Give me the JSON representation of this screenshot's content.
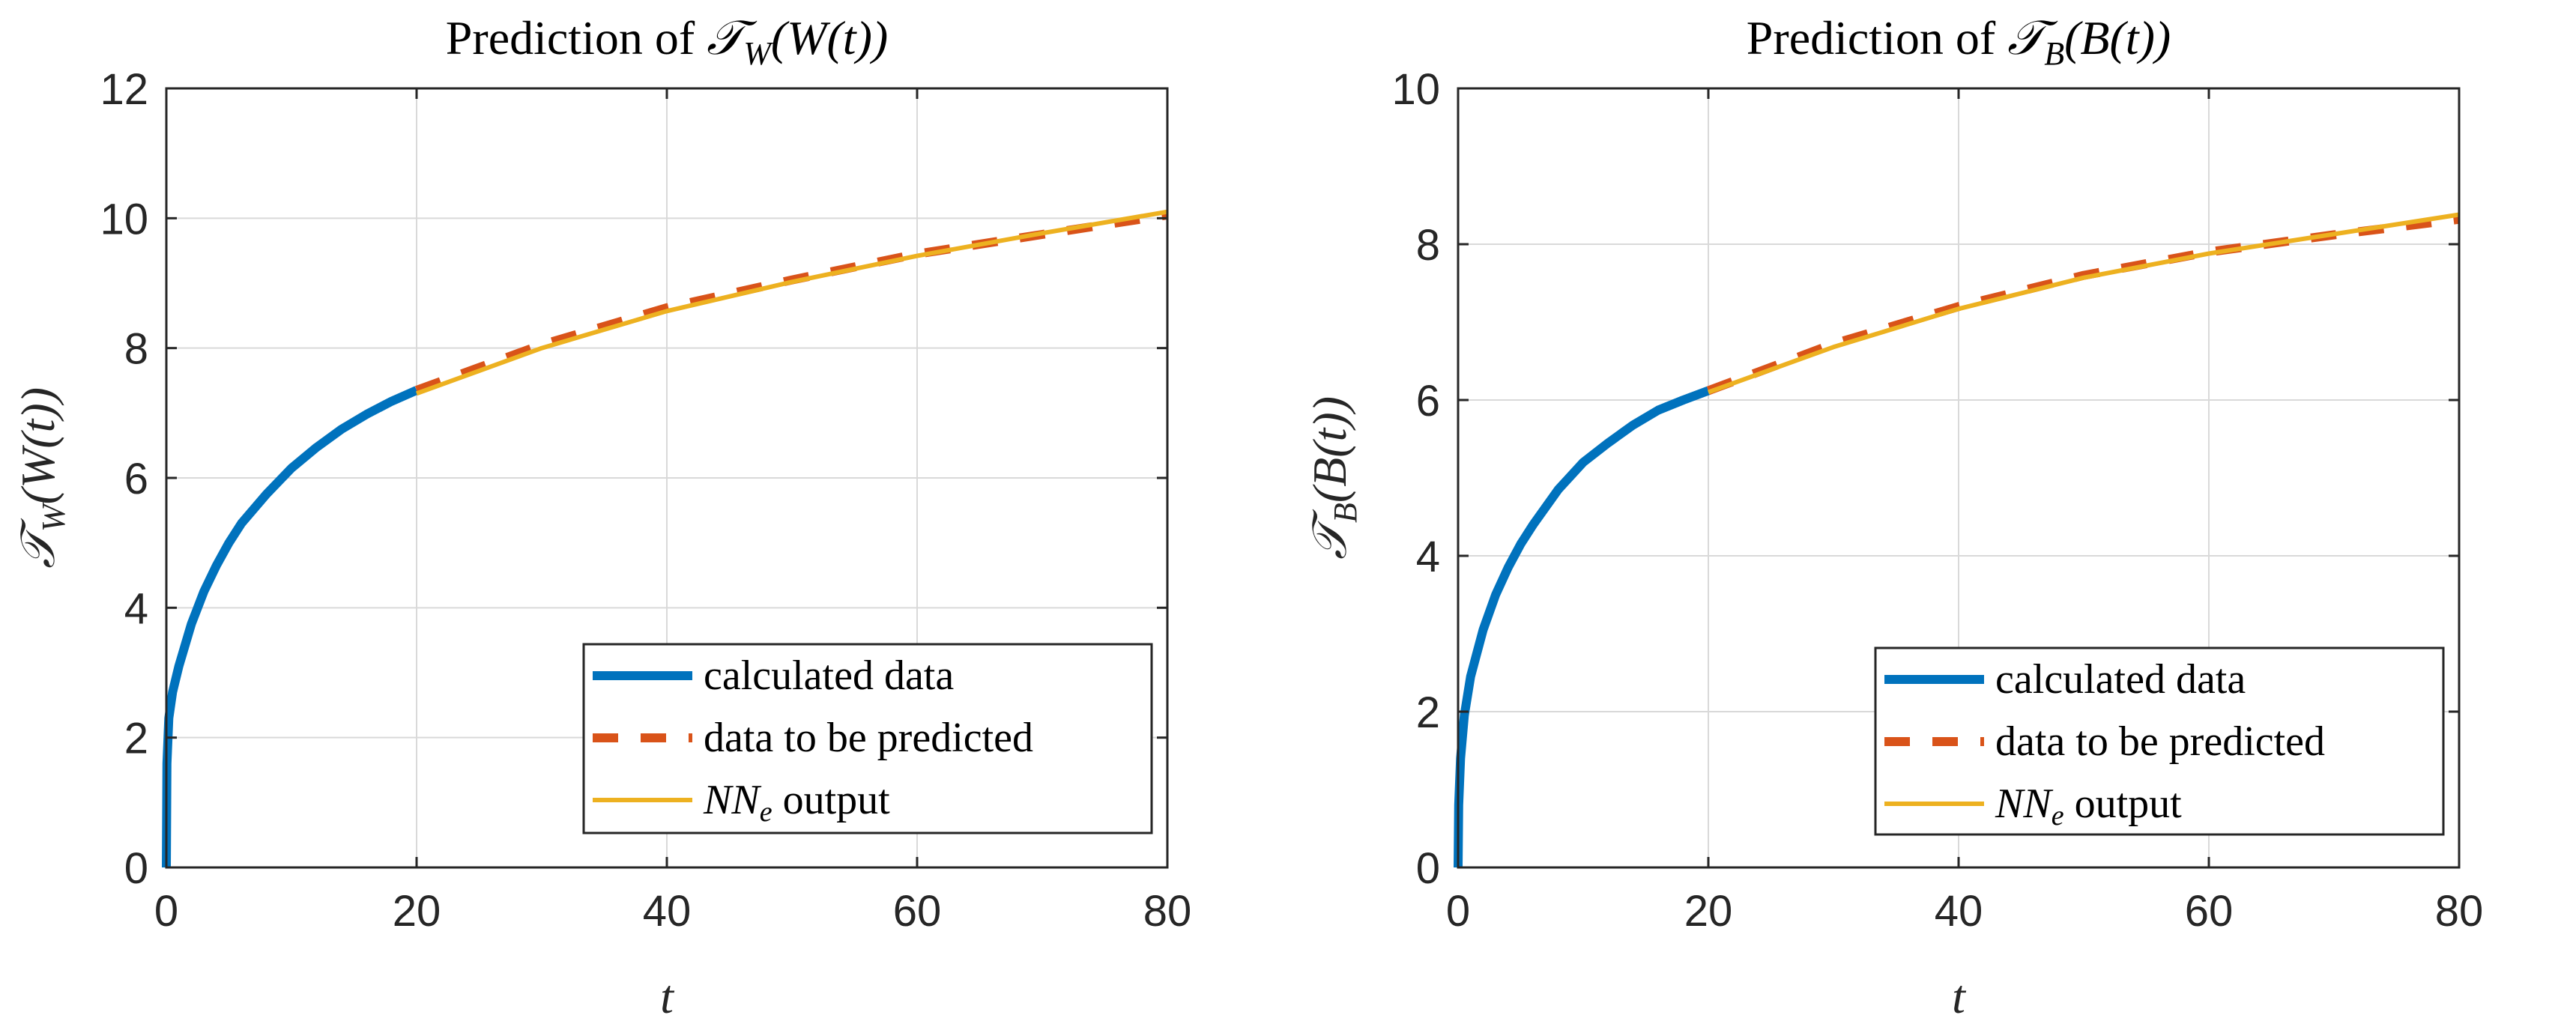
{
  "colors": {
    "calculated": "#0072BD",
    "predicted": "#D95319",
    "nn_output": "#EDB120",
    "axis": "#262626",
    "grid": "#d9d9d9"
  },
  "chart_data": [
    {
      "type": "line",
      "title_prefix": "Prediction of ",
      "title_math": "𝒯",
      "title_sub": "W",
      "title_arg": "(W(t))",
      "xlabel": "t",
      "ylabel_math": "𝒯",
      "ylabel_sub": "W",
      "ylabel_arg": "(W(t))",
      "xlim": [
        0,
        80
      ],
      "ylim": [
        0,
        12
      ],
      "xticks": [
        "0",
        "20",
        "40",
        "60",
        "80"
      ],
      "yticks": [
        "0",
        "2",
        "4",
        "6",
        "8",
        "10",
        "12"
      ],
      "grid": true,
      "legend_position": "bottom-right",
      "series": [
        {
          "name": "calculated data",
          "x": [
            0,
            0.05,
            0.2,
            0.5,
            1,
            2,
            3,
            4,
            5,
            6,
            8,
            10,
            12,
            14,
            16,
            18,
            20
          ],
          "y": [
            0,
            1.6,
            2.3,
            2.7,
            3.1,
            3.75,
            4.25,
            4.65,
            5.0,
            5.3,
            5.75,
            6.15,
            6.47,
            6.75,
            6.98,
            7.18,
            7.35
          ]
        },
        {
          "name": "data to be predicted",
          "x": [
            20,
            30,
            40,
            50,
            60,
            70,
            80
          ],
          "y": [
            7.35,
            8.05,
            8.62,
            9.05,
            9.45,
            9.75,
            10.05
          ]
        },
        {
          "name": "NN_e output",
          "x": [
            20,
            30,
            40,
            50,
            60,
            70,
            80
          ],
          "y": [
            7.3,
            8.0,
            8.57,
            9.02,
            9.42,
            9.77,
            10.1
          ]
        }
      ],
      "legend": [
        "calculated data",
        "data to be predicted",
        "NN",
        "e",
        " output"
      ]
    },
    {
      "type": "line",
      "title_prefix": "Prediction of ",
      "title_math": "𝒯",
      "title_sub": "B",
      "title_arg": "(B(t))",
      "xlabel": "t",
      "ylabel_math": "𝒯",
      "ylabel_sub": "B",
      "ylabel_arg": "(B(t))",
      "xlim": [
        0,
        80
      ],
      "ylim": [
        0,
        10
      ],
      "xticks": [
        "0",
        "20",
        "40",
        "60",
        "80"
      ],
      "yticks": [
        "0",
        "2",
        "4",
        "6",
        "8",
        "10"
      ],
      "grid": true,
      "legend_position": "bottom-right",
      "series": [
        {
          "name": "calculated data",
          "x": [
            0,
            0.05,
            0.2,
            0.5,
            1,
            2,
            3,
            4,
            5,
            6,
            8,
            10,
            12,
            14,
            16,
            18,
            20
          ],
          "y": [
            0,
            0.8,
            1.4,
            1.95,
            2.45,
            3.05,
            3.5,
            3.85,
            4.15,
            4.4,
            4.85,
            5.2,
            5.45,
            5.68,
            5.87,
            6.0,
            6.12
          ]
        },
        {
          "name": "data to be predicted",
          "x": [
            20,
            30,
            40,
            50,
            60,
            70,
            80
          ],
          "y": [
            6.12,
            6.72,
            7.2,
            7.6,
            7.9,
            8.12,
            8.32
          ]
        },
        {
          "name": "NN_e output",
          "x": [
            20,
            30,
            40,
            50,
            60,
            70,
            80
          ],
          "y": [
            6.1,
            6.68,
            7.17,
            7.57,
            7.88,
            8.13,
            8.38
          ]
        }
      ],
      "legend": [
        "calculated data",
        "data to be predicted",
        "NN",
        "e",
        " output"
      ]
    }
  ]
}
